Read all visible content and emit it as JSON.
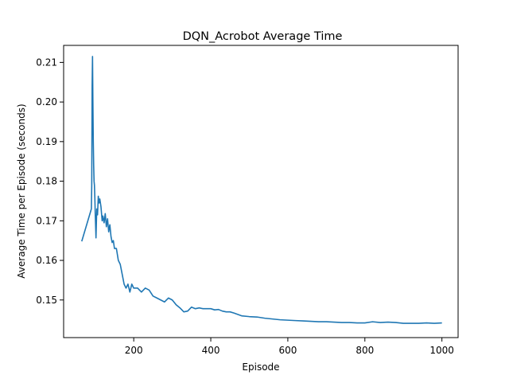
{
  "chart_data": {
    "type": "line",
    "title": "DQN_Acrobot Average Time",
    "xlabel": "Episode",
    "ylabel": "Average Time per Episode (seconds)",
    "xlim": [
      18,
      1042
    ],
    "ylim": [
      0.1405,
      0.2143
    ],
    "xticks": [
      200,
      400,
      600,
      800,
      1000
    ],
    "yticks": [
      0.15,
      0.16,
      0.17,
      0.18,
      0.19,
      0.2,
      0.21
    ],
    "ytick_labels": [
      "0.15",
      "0.16",
      "0.17",
      "0.18",
      "0.19",
      "0.20",
      "0.21"
    ],
    "grid": false,
    "legend": "none",
    "color": "#1f77b4",
    "series": [
      {
        "x": [
          65,
          90,
          91,
          92,
          93,
          94,
          95,
          96,
          97,
          98,
          99,
          100,
          102,
          104,
          106,
          108,
          110,
          112,
          115,
          118,
          120,
          123,
          126,
          129,
          132,
          135,
          138,
          141,
          144,
          147,
          150,
          155,
          160,
          165,
          170,
          175,
          180,
          185,
          190,
          195,
          200,
          210,
          220,
          230,
          240,
          250,
          260,
          270,
          280,
          290,
          300,
          310,
          320,
          330,
          340,
          350,
          360,
          370,
          380,
          390,
          400,
          410,
          420,
          430,
          440,
          450,
          460,
          480,
          500,
          520,
          540,
          560,
          580,
          600,
          620,
          640,
          660,
          680,
          700,
          720,
          740,
          760,
          780,
          800,
          820,
          840,
          860,
          880,
          900,
          920,
          940,
          960,
          980,
          1000
        ],
        "y": [
          0.1648,
          0.173,
          0.179,
          0.204,
          0.2115,
          0.2,
          0.19,
          0.184,
          0.18,
          0.179,
          0.176,
          0.172,
          0.1657,
          0.173,
          0.1715,
          0.1762,
          0.1745,
          0.1755,
          0.1735,
          0.17,
          0.1712,
          0.1695,
          0.1718,
          0.1685,
          0.1705,
          0.1672,
          0.169,
          0.166,
          0.1645,
          0.165,
          0.163,
          0.163,
          0.16,
          0.159,
          0.1565,
          0.154,
          0.153,
          0.154,
          0.152,
          0.154,
          0.153,
          0.153,
          0.152,
          0.153,
          0.1525,
          0.151,
          0.1505,
          0.15,
          0.1495,
          0.1505,
          0.15,
          0.1488,
          0.148,
          0.147,
          0.1472,
          0.1482,
          0.1478,
          0.148,
          0.1478,
          0.1478,
          0.1478,
          0.1475,
          0.1476,
          0.1472,
          0.147,
          0.147,
          0.1467,
          0.146,
          0.1458,
          0.1457,
          0.1454,
          0.1452,
          0.145,
          0.1449,
          0.1448,
          0.1447,
          0.1446,
          0.1445,
          0.1445,
          0.1444,
          0.1443,
          0.1443,
          0.1442,
          0.1442,
          0.1445,
          0.1443,
          0.1444,
          0.1443,
          0.1441,
          0.1441,
          0.1441,
          0.1442,
          0.1441,
          0.1442
        ]
      }
    ]
  }
}
